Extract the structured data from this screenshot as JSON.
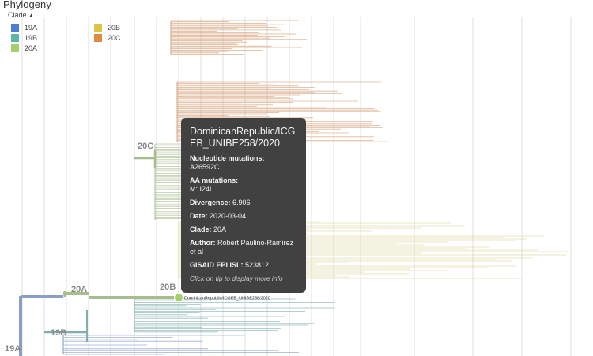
{
  "panel_title": "Phylogeny",
  "legend": {
    "toggle_label": "Clade",
    "toggle_icon": "chevron-up-icon",
    "items": [
      {
        "label": "19A",
        "color": "#4C7FD4"
      },
      {
        "label": "19B",
        "color": "#5FB5A6"
      },
      {
        "label": "20A",
        "color": "#A4CF6B"
      },
      {
        "label": "20B",
        "color": "#DDC444"
      },
      {
        "label": "20C",
        "color": "#E08B3D"
      }
    ]
  },
  "branch_colors": {
    "19A": "#8A9EC6",
    "19B": "#7FB0AC",
    "20A": "#A8BD8C",
    "20B": "#D6CC8A",
    "20C": "#D6A47E"
  },
  "branch_labels": [
    "20C",
    "20A",
    "20B",
    "19B",
    "19A"
  ],
  "selected_tip": {
    "label": "DominicanRepublic/ICGEB_UNIBE258/2020",
    "color": "#A4CF6B"
  },
  "tooltip": {
    "name": "DominicanRepublic/ICGEB_UNIBE258/2020",
    "nuc_label": "Nucleotide mutations:",
    "nuc_value": "A26592C",
    "aa_label": "AA mutations:",
    "aa_value": "M: I24L",
    "div_label": "Divergence:",
    "div_value": "6.906",
    "date_label": "Date:",
    "date_value": "2020-03-04",
    "clade_label": "Clade:",
    "clade_value": "20A",
    "author_label": "Author:",
    "author_value": "Robert Paulino-Ramirez et al",
    "gisaid_label": "GISAID EPI ISL:",
    "gisaid_value": "523812",
    "hint": "Click on tip to display more info"
  }
}
